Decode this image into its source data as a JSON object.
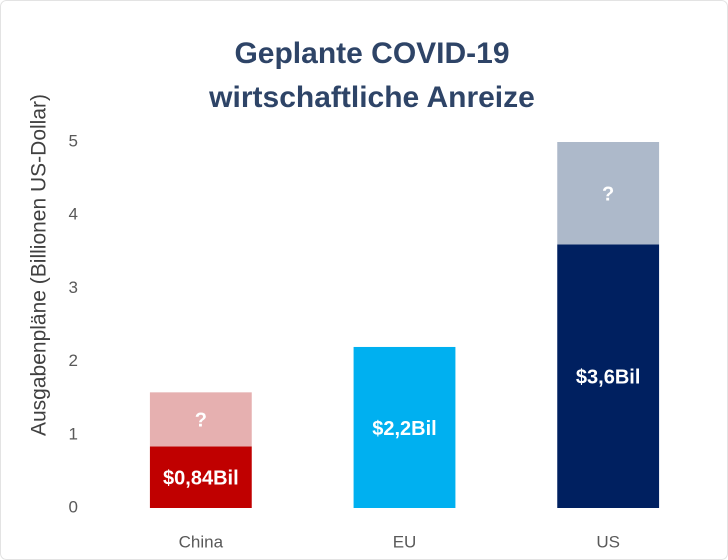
{
  "chart_data": {
    "type": "stacked_bar",
    "title": "Geplante COVID-19 wirtschaftliche Anreize",
    "y_label": "Ausgabenpläne (Billionen US-Dollar)",
    "categories": [
      "China",
      "EU",
      "US"
    ],
    "series": [
      {
        "values": [
          0.84,
          2.2,
          3.6
        ],
        "value_labels": [
          "$0,84Bil",
          "$2,2Bil",
          "$3,6Bil"
        ],
        "colors": [
          "#c00000",
          "#00b0f0",
          "#002060"
        ]
      },
      {
        "values": [
          0.74,
          null,
          1.4
        ],
        "value_labels": [
          "?",
          null,
          "?"
        ],
        "colors": [
          "#e6b0b0",
          null,
          "#adb9ca"
        ]
      }
    ],
    "ylim": [
      0,
      5
    ],
    "yticks": [
      0,
      1,
      2,
      3,
      4,
      5
    ],
    "grid": false
  }
}
